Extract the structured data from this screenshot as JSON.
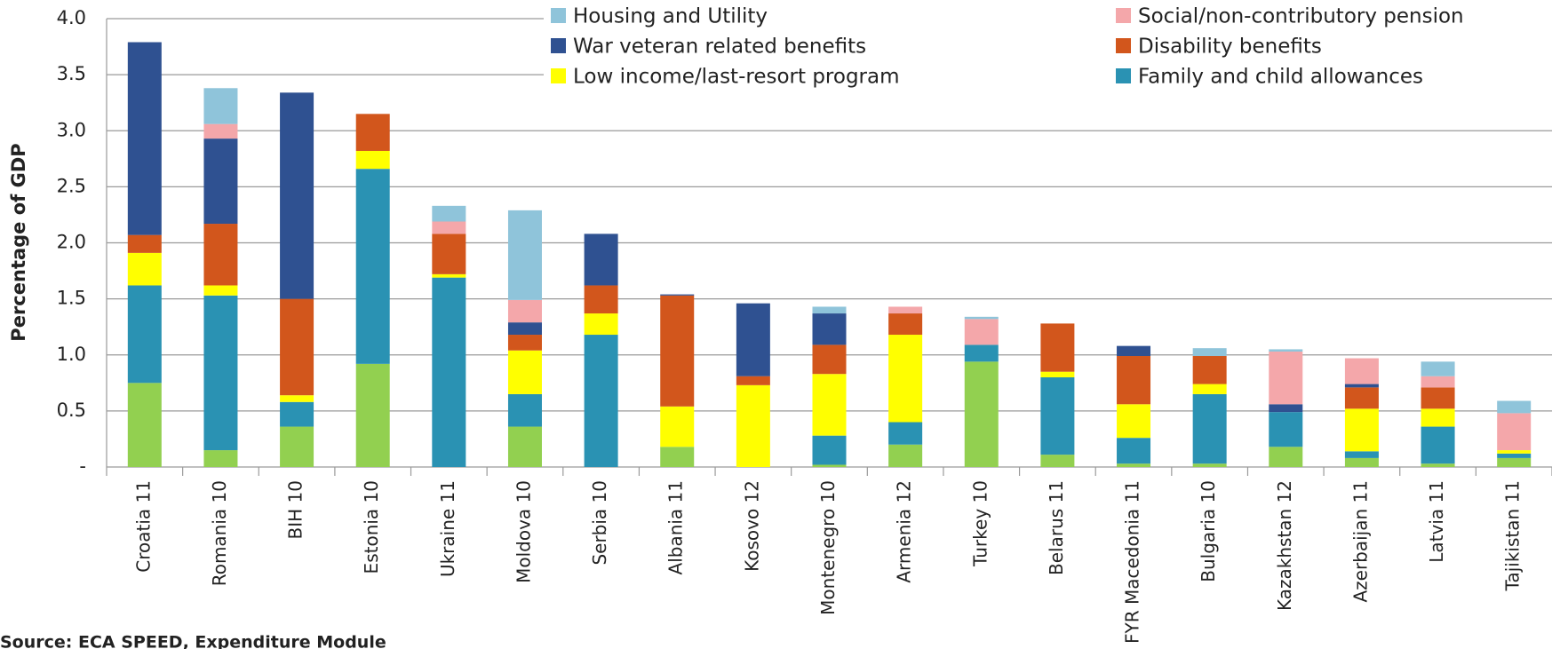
{
  "chart_data": {
    "type": "stacked_bar",
    "y_label": "Percentage of GDP",
    "source": "Source: ECA SPEED, Expenditure Module",
    "categories": [
      "Croatia 11",
      "Romania 10",
      "BIH 10",
      "Estonia 10",
      "Ukraine 11",
      "Moldova 10",
      "Serbia 10",
      "Albania 11",
      "Kosovo 12",
      "Montenegro 10",
      "Armenia 12",
      "Turkey 10",
      "Belarus 11",
      "FYR Macedonia 11",
      "Bulgaria 10",
      "Kazakhstan 12",
      "Azerbaijan 11",
      "Latvia 11",
      "Tajikistan 11"
    ],
    "series": [
      {
        "color": "#92d050",
        "values": [
          0.75,
          0.15,
          0.36,
          0.92,
          0,
          0.36,
          0,
          0.18,
          0,
          0.02,
          0.2,
          0.94,
          0.11,
          0.03,
          0.03,
          0.18,
          0.08,
          0.03,
          0.08
        ]
      },
      {
        "name": "Family and child allowances",
        "color": "#2a92b3",
        "values": [
          0.87,
          1.38,
          0.22,
          1.74,
          1.69,
          0.29,
          1.18,
          0,
          0,
          0.26,
          0.2,
          0.15,
          0.69,
          0.23,
          0.62,
          0.31,
          0.06,
          0.33,
          0.04
        ]
      },
      {
        "name": "Low income/last-resort program",
        "color": "#ffff00",
        "values": [
          0.29,
          0.09,
          0.06,
          0.16,
          0.03,
          0.39,
          0.19,
          0.36,
          0.73,
          0.55,
          0.78,
          0,
          0.05,
          0.3,
          0.09,
          0,
          0.38,
          0.16,
          0.03
        ]
      },
      {
        "name": "Disability benefits",
        "color": "#d2561c",
        "values": [
          0.16,
          0.55,
          0.86,
          0.33,
          0.36,
          0.14,
          0.25,
          0.99,
          0.08,
          0.26,
          0.19,
          0,
          0.43,
          0.43,
          0.25,
          0,
          0.19,
          0.19,
          0
        ]
      },
      {
        "name": "War veteran related benefits",
        "color": "#2f5191",
        "values": [
          1.72,
          0.76,
          1.84,
          0,
          0,
          0.11,
          0.46,
          0.01,
          0.65,
          0.28,
          0,
          0,
          0,
          0.09,
          0,
          0.07,
          0.03,
          0,
          0
        ]
      },
      {
        "name": "Social/non-contributory pension",
        "color": "#f4a7aa",
        "values": [
          0,
          0.13,
          0,
          0,
          0.11,
          0.2,
          0,
          0,
          0,
          0,
          0.06,
          0.23,
          0,
          0,
          0,
          0.47,
          0.23,
          0.1,
          0.33
        ]
      },
      {
        "name": "Housing and Utility",
        "color": "#8fc4da",
        "values": [
          0,
          0.32,
          0,
          0,
          0.14,
          0.8,
          0,
          0,
          0,
          0.06,
          0,
          0.02,
          0,
          0,
          0.07,
          0.02,
          0,
          0.13,
          0.11
        ]
      }
    ],
    "ylim": [
      0,
      4
    ],
    "yticks": [
      {
        "value": 0,
        "label": "-"
      },
      0.5,
      {
        "value": 1,
        "label": "1.0"
      },
      1.5,
      {
        "value": 2,
        "label": "2.0"
      },
      2.5,
      {
        "value": 3,
        "label": "3.0"
      },
      3.5,
      {
        "value": 4,
        "label": "4.0"
      }
    ],
    "grid": true
  }
}
